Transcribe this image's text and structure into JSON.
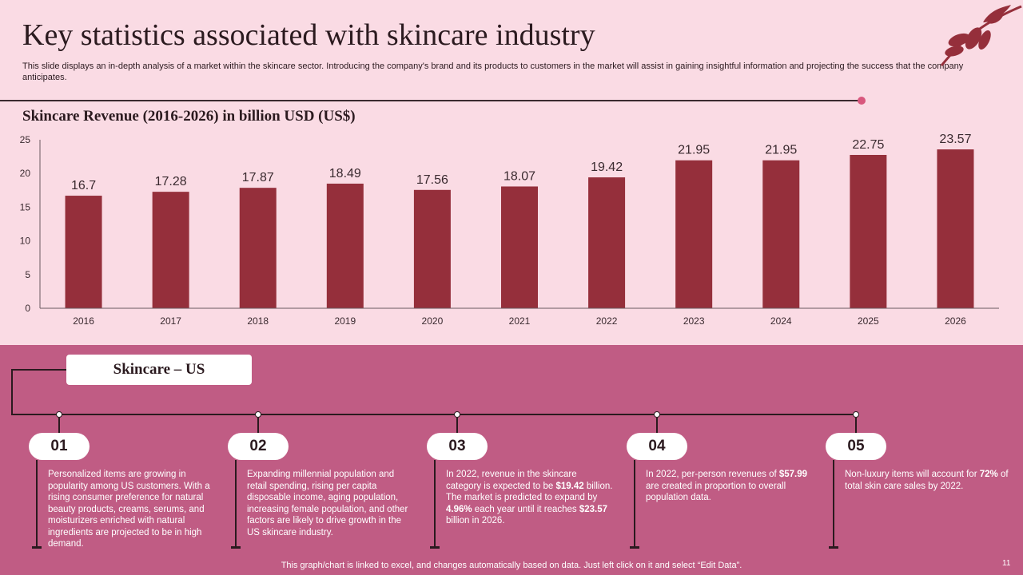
{
  "title": "Key statistics associated with skincare industry",
  "subtitle": "This slide displays an in-depth analysis of a market within the skincare sector. Introducing the company's brand and its products to customers in the market will assist in gaining insightful information and projecting the success that the company anticipates.",
  "colors": {
    "bar": "#952f3b",
    "top_bg": "#fadbe4",
    "bottom_bg": "#c05c84",
    "accent_dot": "#d8577d"
  },
  "chart_data": {
    "type": "bar",
    "title": "Skincare Revenue (2016-2026) in billion USD (US$)",
    "categories": [
      "2016",
      "2017",
      "2018",
      "2019",
      "2020",
      "2021",
      "2022",
      "2023",
      "2024",
      "2025",
      "2026"
    ],
    "values": [
      16.7,
      17.28,
      17.87,
      18.49,
      17.56,
      18.07,
      19.42,
      21.95,
      21.95,
      22.75,
      23.57
    ],
    "value_labels": [
      "16.7",
      "17.28",
      "17.87",
      "18.49",
      "17.56",
      "18.07",
      "19.42",
      "21.95",
      "21.95",
      "22.75",
      "23.57"
    ],
    "yticks": [
      "0",
      "5",
      "10",
      "15",
      "20",
      "25"
    ],
    "ylim": [
      0,
      25
    ],
    "xlabel": "",
    "ylabel": ""
  },
  "section_label": "Skincare – US",
  "points": [
    {
      "num": "01",
      "html": "Personalized items are growing in popularity among US customers. With a rising consumer preference for natural beauty products, creams, serums, and moisturizers enriched with natural ingredients are projected to be in high demand."
    },
    {
      "num": "02",
      "html": "Expanding millennial population and retail spending, rising per capita disposable income, aging population, increasing female population, and other factors are likely to drive growth in the US skincare industry."
    },
    {
      "num": "03",
      "html": "In 2022, revenue in the skincare category is expected to be <b>$19.42</b> billion. The market is predicted to expand by <b>4.96%</b> each year until it reaches <b>$23.57</b> billion in 2026."
    },
    {
      "num": "04",
      "html": "In 2022, per-person revenues of <b>$57.99</b> are created in proportion to overall population data."
    },
    {
      "num": "05",
      "html": "Non-luxury items will account for <b>72%</b> of total skin care sales by 2022."
    }
  ],
  "footer": "This graph/chart is linked to excel,  and changes automatically based on data. Just left click on it and select “Edit Data”.",
  "page_number": "11"
}
